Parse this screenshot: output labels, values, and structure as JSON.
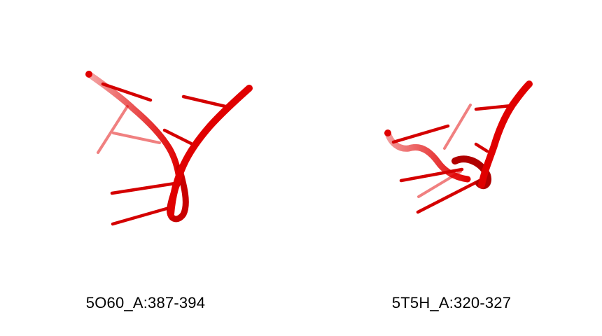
{
  "panels": [
    {
      "label": "5O60_A:387-394",
      "color": "#e00000"
    },
    {
      "label": "5T5H_A:320-327",
      "color": "#e00000"
    }
  ]
}
